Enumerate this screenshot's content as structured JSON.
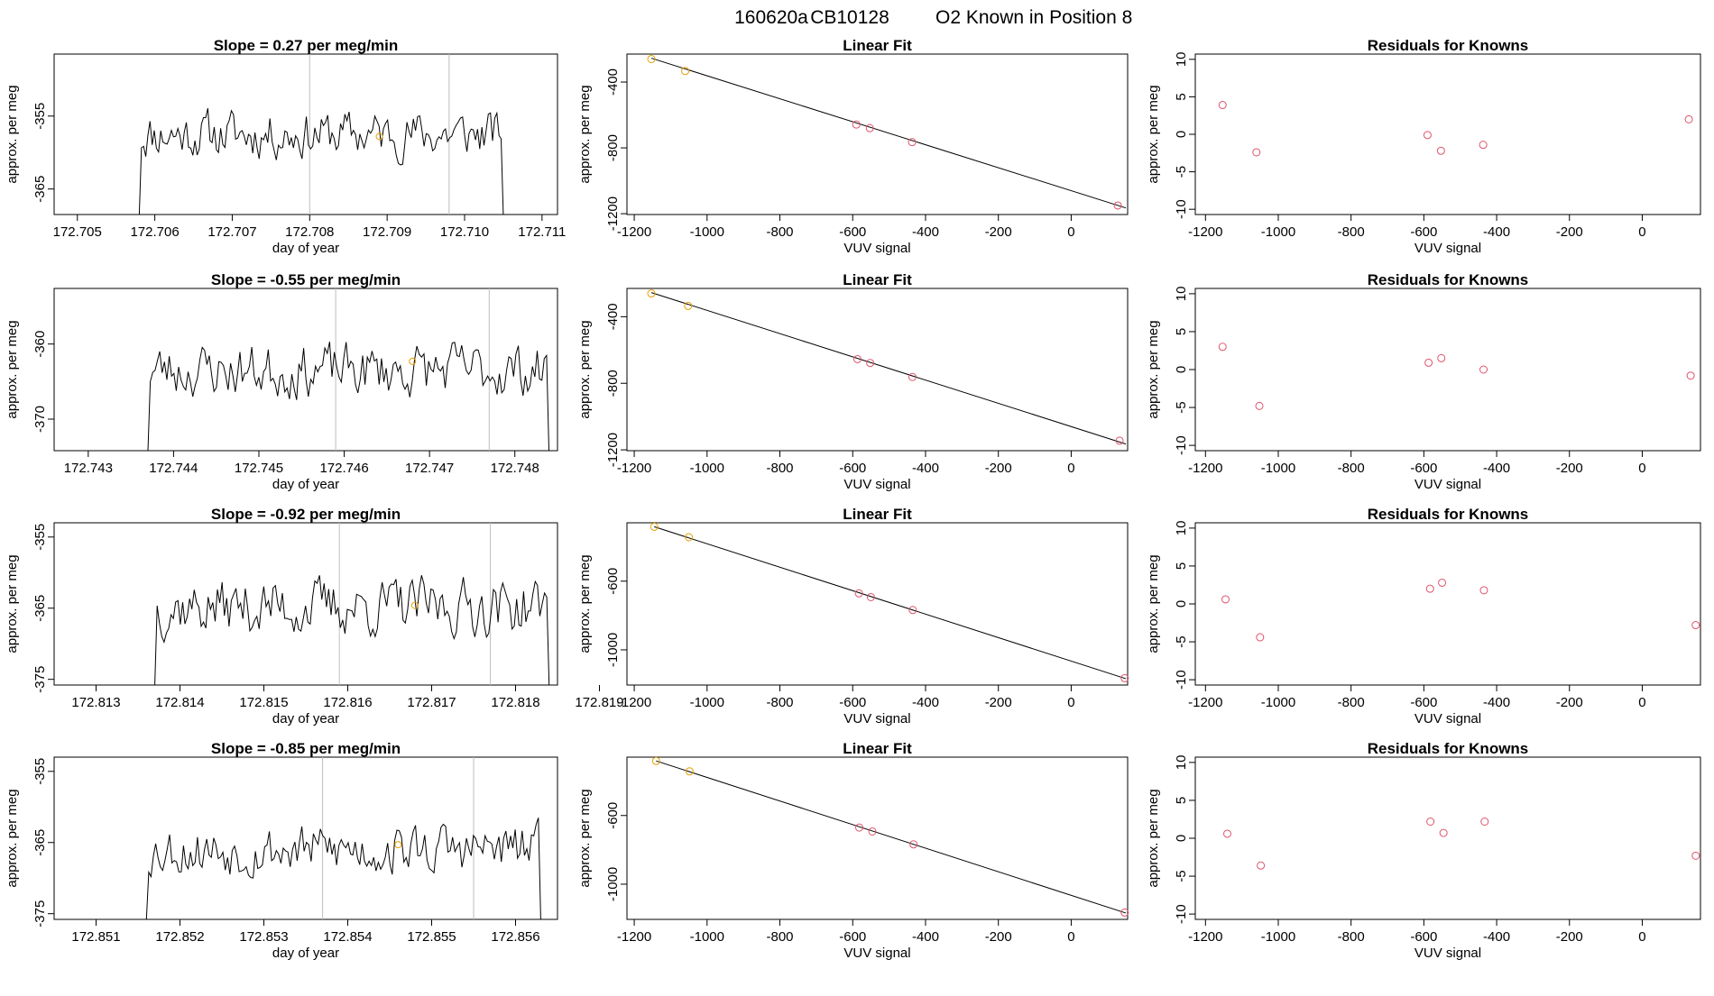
{
  "header": {
    "run_id": "160620a",
    "cylinder_id": "CB10128",
    "position_text": "O2 Known in Position  8"
  },
  "colors": {
    "trace": "#000000",
    "marker_orange": "#E69F00",
    "residual_red": "#DF536B",
    "vline": "#BEBEBE",
    "text": "#000000"
  },
  "chart_data": [
    {
      "type": "line",
      "title_prefix": "Slope =",
      "slope": "0.27",
      "title_unit": "per meg/min",
      "xlabel": "day of year",
      "ylabel": "approx. per meg",
      "xticks": [
        "172.705",
        "172.706",
        "172.707",
        "172.708",
        "172.709",
        "172.710",
        "172.711"
      ],
      "xtick_values": [
        172.705,
        172.706,
        172.707,
        172.708,
        172.709,
        172.71,
        172.711
      ],
      "yticks": [
        "-365",
        "-355"
      ],
      "ytick_values": [
        -365,
        -355
      ],
      "xlim": [
        172.7047,
        172.7112
      ],
      "ylim": [
        -368.5,
        -346.5
      ],
      "vlines": [
        172.708,
        172.7098
      ],
      "trace_range": [
        172.7058,
        172.7105
      ],
      "trace_mean": -357.5,
      "trace_amp": 4.5,
      "seed": 11,
      "marker": {
        "x": 172.7089,
        "y": -357.8
      }
    },
    {
      "type": "scatter",
      "title": "Linear Fit",
      "xlabel": "VUV signal",
      "ylabel": "approx. per meg",
      "xticks": [
        "-1200",
        "-1000",
        "-800",
        "-600",
        "-400",
        "-200",
        "0"
      ],
      "xtick_values": [
        -1200,
        -1000,
        -800,
        -600,
        -400,
        -200,
        0
      ],
      "yticks": [
        "-1200",
        "-800",
        "-400"
      ],
      "ytick_values": [
        -1200,
        -800,
        -400
      ],
      "xlim": [
        -1220,
        155
      ],
      "ylim": [
        -1205,
        -230
      ],
      "points": [
        {
          "x": -1153,
          "y": -260,
          "marker": "orange"
        },
        {
          "x": -1060,
          "y": -333,
          "marker": "orange"
        },
        {
          "x": -590,
          "y": -658,
          "marker": "red"
        },
        {
          "x": -553,
          "y": -680,
          "marker": "red"
        },
        {
          "x": -437,
          "y": -765,
          "marker": "red"
        },
        {
          "x": 128,
          "y": -1150,
          "marker": "red"
        }
      ],
      "fit_line": [
        {
          "x": -1153,
          "y": -255
        },
        {
          "x": 150,
          "y": -1165
        }
      ]
    },
    {
      "type": "scatter",
      "title": "Residuals for Knowns",
      "xlabel": "VUV signal",
      "ylabel": "approx. per meg",
      "xticks": [
        "-1200",
        "-1000",
        "-800",
        "-600",
        "-400",
        "-200",
        "0"
      ],
      "xtick_values": [
        -1200,
        -1000,
        -800,
        -600,
        -400,
        -200,
        0
      ],
      "yticks": [
        "-10",
        "-5",
        "0",
        "5",
        "10"
      ],
      "ytick_values": [
        -10,
        -5,
        0,
        5,
        10
      ],
      "xlim": [
        -1228,
        160
      ],
      "ylim": [
        -10.7,
        10.7
      ],
      "points": [
        {
          "x": -1153,
          "y": 3.9
        },
        {
          "x": -1060,
          "y": -2.4
        },
        {
          "x": -590,
          "y": -0.1
        },
        {
          "x": -553,
          "y": -2.2
        },
        {
          "x": -437,
          "y": -1.4
        },
        {
          "x": 128,
          "y": 2.0
        }
      ]
    },
    {
      "type": "line",
      "title_prefix": "Slope =",
      "slope": "-0.55",
      "title_unit": "per meg/min",
      "xlabel": "day of year",
      "ylabel": "approx. per meg",
      "xticks": [
        "172.743",
        "172.744",
        "172.745",
        "172.746",
        "172.747",
        "172.748"
      ],
      "xtick_values": [
        172.743,
        172.744,
        172.745,
        172.746,
        172.747,
        172.748
      ],
      "yticks": [
        "-370",
        "-360"
      ],
      "ytick_values": [
        -370,
        -360
      ],
      "xlim": [
        172.7426,
        172.7485
      ],
      "ylim": [
        -374.2,
        -352.6
      ],
      "vlines": [
        172.7459,
        172.7477
      ],
      "trace_range": [
        172.7437,
        172.7484
      ],
      "trace_mean": -363.5,
      "trace_amp": 5.0,
      "seed": 23,
      "marker": {
        "x": 172.7468,
        "y": -362.3
      }
    },
    {
      "type": "scatter",
      "title": "Linear Fit",
      "xlabel": "VUV signal",
      "ylabel": "approx. per meg",
      "xticks": [
        "-1200",
        "-1000",
        "-800",
        "-600",
        "-400",
        "-200",
        "0"
      ],
      "xtick_values": [
        -1200,
        -1000,
        -800,
        -600,
        -400,
        -200,
        0
      ],
      "yticks": [
        "-1200",
        "-800",
        "-400"
      ],
      "ytick_values": [
        -1200,
        -800,
        -400
      ],
      "xlim": [
        -1220,
        155
      ],
      "ylim": [
        -1205,
        -230
      ],
      "points": [
        {
          "x": -1153,
          "y": -260,
          "marker": "orange"
        },
        {
          "x": -1052,
          "y": -335,
          "marker": "orange"
        },
        {
          "x": -587,
          "y": -655,
          "marker": "red"
        },
        {
          "x": -552,
          "y": -678,
          "marker": "red"
        },
        {
          "x": -436,
          "y": -762,
          "marker": "red"
        },
        {
          "x": 133,
          "y": -1145,
          "marker": "red"
        }
      ],
      "fit_line": [
        {
          "x": -1153,
          "y": -255
        },
        {
          "x": 150,
          "y": -1165
        }
      ]
    },
    {
      "type": "scatter",
      "title": "Residuals for Knowns",
      "xlabel": "VUV signal",
      "ylabel": "approx. per meg",
      "xticks": [
        "-1200",
        "-1000",
        "-800",
        "-600",
        "-400",
        "-200",
        "0"
      ],
      "xtick_values": [
        -1200,
        -1000,
        -800,
        -600,
        -400,
        -200,
        0
      ],
      "yticks": [
        "-10",
        "-5",
        "0",
        "5",
        "10"
      ],
      "ytick_values": [
        -10,
        -5,
        0,
        5,
        10
      ],
      "xlim": [
        -1228,
        160
      ],
      "ylim": [
        -10.7,
        10.7
      ],
      "points": [
        {
          "x": -1153,
          "y": 3.0
        },
        {
          "x": -1052,
          "y": -4.8
        },
        {
          "x": -587,
          "y": 0.9
        },
        {
          "x": -552,
          "y": 1.5
        },
        {
          "x": -436,
          "y": 0.0
        },
        {
          "x": 133,
          "y": -0.8
        }
      ]
    },
    {
      "type": "line",
      "title_prefix": "Slope =",
      "slope": "-0.92",
      "title_unit": "per meg/min",
      "xlabel": "day of year",
      "ylabel": "approx. per meg",
      "xticks": [
        "172.813",
        "172.814",
        "172.815",
        "172.816",
        "172.817",
        "172.818",
        "172.819"
      ],
      "xtick_values": [
        172.813,
        172.814,
        172.815,
        172.816,
        172.817,
        172.818,
        172.819
      ],
      "yticks": [
        "-375",
        "-365",
        "-355"
      ],
      "ytick_values": [
        -375,
        -365,
        -355
      ],
      "xlim": [
        172.8125,
        172.8185
      ],
      "ylim": [
        -375.8,
        -353.0
      ],
      "vlines": [
        172.8159,
        172.8177
      ],
      "trace_range": [
        172.8137,
        172.8184
      ],
      "trace_mean": -364.8,
      "trace_amp": 5.6,
      "seed": 37,
      "marker": {
        "x": 172.8168,
        "y": -364.6
      }
    },
    {
      "type": "scatter",
      "title": "Linear Fit",
      "xlabel": "VUV signal",
      "ylabel": "approx. per meg",
      "xticks": [
        "-1200",
        "-1000",
        "-800",
        "-600",
        "-400",
        "-200",
        "0"
      ],
      "xtick_values": [
        -1200,
        -1000,
        -800,
        -600,
        -400,
        -200,
        0
      ],
      "yticks": [
        "-1000",
        "-600"
      ],
      "ytick_values": [
        -1000,
        -600
      ],
      "xlim": [
        -1220,
        155
      ],
      "ylim": [
        -1205,
        -260
      ],
      "points": [
        {
          "x": -1145,
          "y": -283,
          "marker": "orange"
        },
        {
          "x": -1050,
          "y": -344,
          "marker": "orange"
        },
        {
          "x": -583,
          "y": -671,
          "marker": "red"
        },
        {
          "x": -550,
          "y": -693,
          "marker": "red"
        },
        {
          "x": -435,
          "y": -768,
          "marker": "red"
        },
        {
          "x": 147,
          "y": -1165,
          "marker": "red"
        }
      ],
      "fit_line": [
        {
          "x": -1145,
          "y": -283
        },
        {
          "x": 150,
          "y": -1168
        }
      ]
    },
    {
      "type": "scatter",
      "title": "Residuals for Knowns",
      "xlabel": "VUV signal",
      "ylabel": "approx. per meg",
      "xticks": [
        "-1200",
        "-1000",
        "-800",
        "-600",
        "-400",
        "-200",
        "0"
      ],
      "xtick_values": [
        -1200,
        -1000,
        -800,
        -600,
        -400,
        -200,
        0
      ],
      "yticks": [
        "-10",
        "-5",
        "0",
        "5",
        "10"
      ],
      "ytick_values": [
        -10,
        -5,
        0,
        5,
        10
      ],
      "xlim": [
        -1228,
        160
      ],
      "ylim": [
        -10.7,
        10.7
      ],
      "points": [
        {
          "x": -1145,
          "y": 0.6
        },
        {
          "x": -1050,
          "y": -4.4
        },
        {
          "x": -583,
          "y": 2.0
        },
        {
          "x": -550,
          "y": 2.8
        },
        {
          "x": -435,
          "y": 1.8
        },
        {
          "x": 147,
          "y": -2.8
        }
      ]
    },
    {
      "type": "line",
      "title_prefix": "Slope =",
      "slope": "-0.85",
      "title_unit": "per meg/min",
      "xlabel": "day of year",
      "ylabel": "approx. per meg",
      "xticks": [
        "172.851",
        "172.852",
        "172.853",
        "172.854",
        "172.855",
        "172.856"
      ],
      "xtick_values": [
        172.851,
        172.852,
        172.853,
        172.854,
        172.855,
        172.856
      ],
      "yticks": [
        "-375",
        "-365",
        "-355"
      ],
      "ytick_values": [
        -375,
        -365,
        -355
      ],
      "xlim": [
        172.8505,
        172.8565
      ],
      "ylim": [
        -375.8,
        -353.0
      ],
      "vlines": [
        172.8537,
        172.8555
      ],
      "trace_range": [
        172.8516,
        172.8563
      ],
      "trace_mean": -366.0,
      "trace_amp": 5.0,
      "seed": 53,
      "marker": {
        "x": 172.8546,
        "y": -365.3
      }
    },
    {
      "type": "scatter",
      "title": "Linear Fit",
      "xlabel": "VUV signal",
      "ylabel": "approx. per meg",
      "xticks": [
        "-1200",
        "-1000",
        "-800",
        "-600",
        "-400",
        "-200",
        "0"
      ],
      "xtick_values": [
        -1200,
        -1000,
        -800,
        -600,
        -400,
        -200,
        0
      ],
      "yticks": [
        "-1000",
        "-600"
      ],
      "ytick_values": [
        -1000,
        -600
      ],
      "xlim": [
        -1220,
        155
      ],
      "ylim": [
        -1205,
        -260
      ],
      "points": [
        {
          "x": -1140,
          "y": -282,
          "marker": "orange"
        },
        {
          "x": -1048,
          "y": -343,
          "marker": "orange"
        },
        {
          "x": -582,
          "y": -670,
          "marker": "red"
        },
        {
          "x": -546,
          "y": -693,
          "marker": "red"
        },
        {
          "x": -433,
          "y": -768,
          "marker": "red"
        },
        {
          "x": 147,
          "y": -1165,
          "marker": "red"
        }
      ],
      "fit_line": [
        {
          "x": -1140,
          "y": -282
        },
        {
          "x": 150,
          "y": -1168
        }
      ]
    },
    {
      "type": "scatter",
      "title": "Residuals for Knowns",
      "xlabel": "VUV signal",
      "ylabel": "approx. per meg",
      "xticks": [
        "-1200",
        "-1000",
        "-800",
        "-600",
        "-400",
        "-200",
        "0"
      ],
      "xtick_values": [
        -1200,
        -1000,
        -800,
        -600,
        -400,
        -200,
        0
      ],
      "yticks": [
        "-10",
        "-5",
        "0",
        "5",
        "10"
      ],
      "ytick_values": [
        -10,
        -5,
        0,
        5,
        10
      ],
      "xlim": [
        -1228,
        160
      ],
      "ylim": [
        -10.7,
        10.7
      ],
      "points": [
        {
          "x": -1140,
          "y": 0.6
        },
        {
          "x": -1048,
          "y": -3.6
        },
        {
          "x": -582,
          "y": 2.2
        },
        {
          "x": -546,
          "y": 0.7
        },
        {
          "x": -433,
          "y": 2.2
        },
        {
          "x": 147,
          "y": -2.3
        }
      ]
    }
  ]
}
